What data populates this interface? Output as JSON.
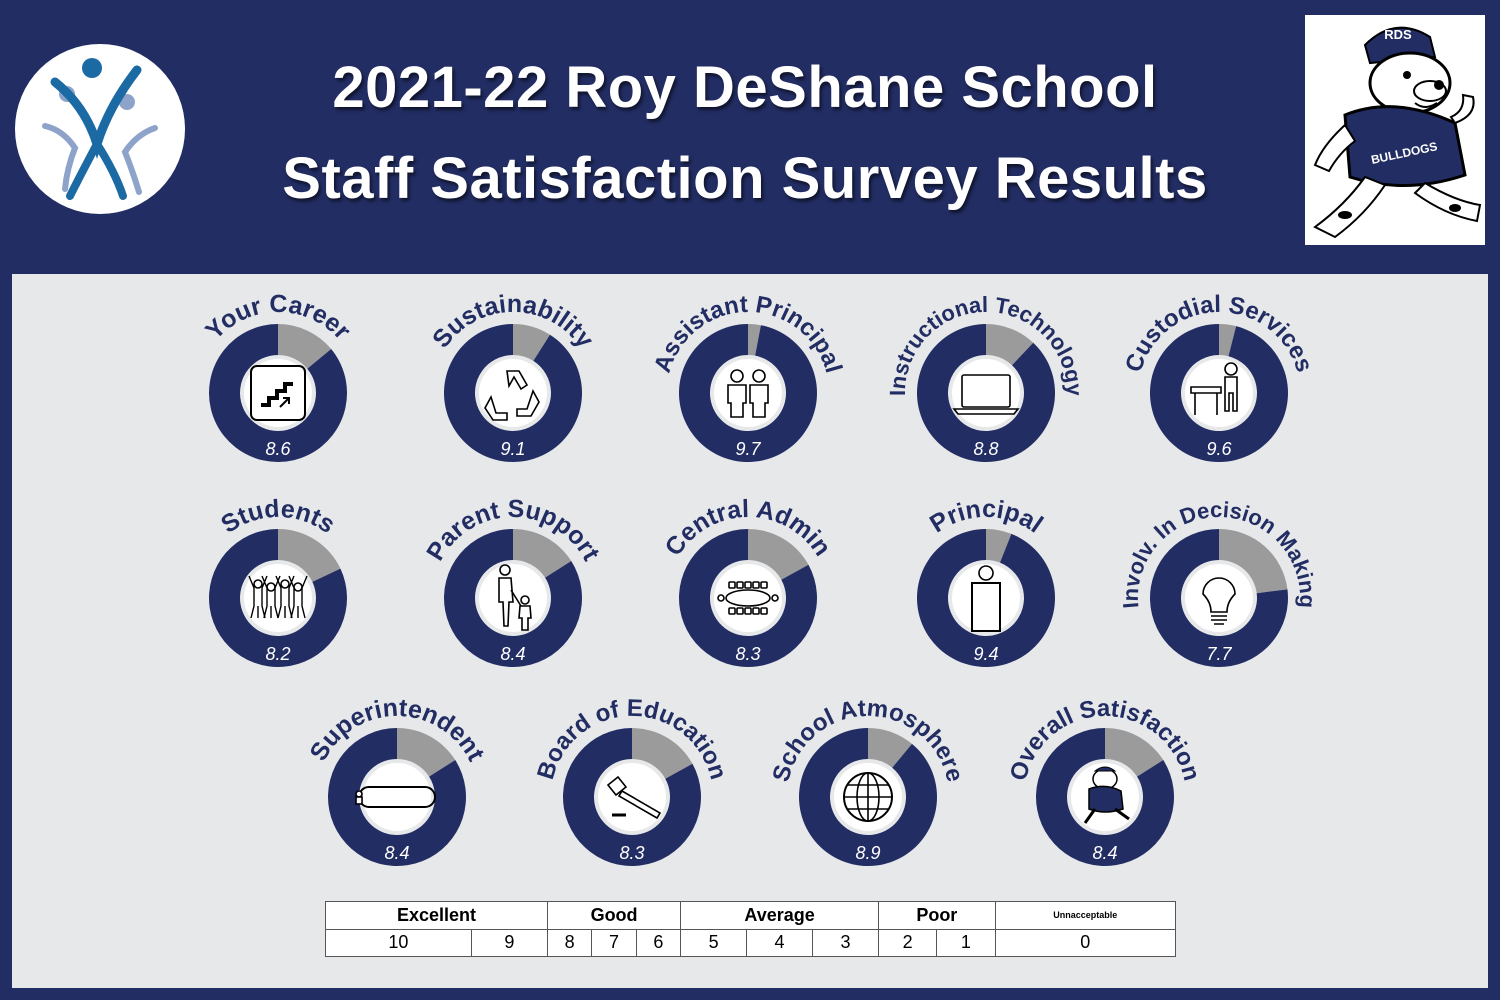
{
  "header": {
    "title_line_1": "2021-22 Roy DeShane School",
    "title_line_2": "Staff Satisfaction Survey Results",
    "mascot_cap_text": "RDS",
    "mascot_shirt_text": "BULLDOGS"
  },
  "colors": {
    "navy": "#222d63",
    "gray": "#9b9b9b",
    "panel": "#e7e8ea",
    "light_blue": "#8ea3c9"
  },
  "chart_data": {
    "type": "donut",
    "max": 10,
    "items": [
      {
        "label": "Your Career",
        "value": 8.6,
        "icon": "stairs-icon"
      },
      {
        "label": "Sustainability",
        "value": 9.1,
        "icon": "recycle-icon"
      },
      {
        "label": "Assistant Principal",
        "value": 9.7,
        "icon": "two-people-icon"
      },
      {
        "label": "Instructional Technology",
        "value": 8.8,
        "icon": "laptop-icon"
      },
      {
        "label": "Custodial Services",
        "value": 9.6,
        "icon": "custodian-table-icon"
      },
      {
        "label": "Students",
        "value": 8.2,
        "icon": "students-group-icon"
      },
      {
        "label": "Parent Support",
        "value": 8.4,
        "icon": "parent-child-icon"
      },
      {
        "label": "Central Admin",
        "value": 8.3,
        "icon": "meeting-table-icon"
      },
      {
        "label": "Principal",
        "value": 9.4,
        "icon": "person-icon"
      },
      {
        "label": "Involv. In Decision Making",
        "value": 7.7,
        "icon": "lightbulb-icon"
      },
      {
        "label": "Superintendent",
        "value": 8.4,
        "icon": "conference-table-icon"
      },
      {
        "label": "Board of Education",
        "value": 8.3,
        "icon": "gavel-icon"
      },
      {
        "label": "School Atmosphere",
        "value": 8.9,
        "icon": "globe-icon"
      },
      {
        "label": "Overall Satisfaction",
        "value": 8.4,
        "icon": "bulldog-icon"
      }
    ]
  },
  "scale": {
    "categories": [
      "Excellent",
      "Good",
      "Average",
      "Poor",
      "Unnacceptable"
    ],
    "numbers": [
      "10",
      "9",
      "8",
      "7",
      "6",
      "5",
      "4",
      "3",
      "2",
      "1",
      "0"
    ]
  }
}
